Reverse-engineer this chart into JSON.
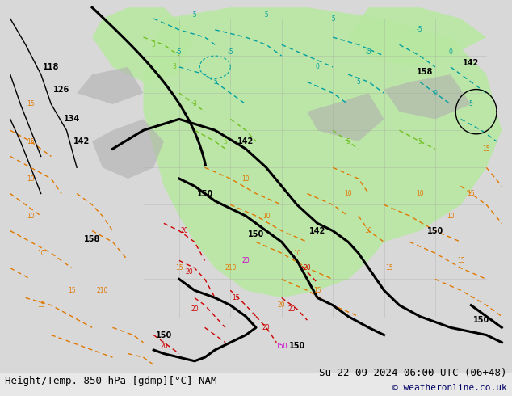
{
  "title_left": "Height/Temp. 850 hPa [gdmp][°C] NAM",
  "title_right": "Su 22-09-2024 06:00 UTC (06+48)",
  "copyright": "© weatheronline.co.uk",
  "bg_color": "#e8e8e8",
  "map_bg_color": "#d8d8d8",
  "green_fill_color": "#b8e8a0",
  "figsize": [
    6.34,
    4.9
  ],
  "dpi": 100,
  "bottom_text_color": "#000000",
  "copyright_color": "#000066",
  "font_size_bottom": 9,
  "font_size_copyright": 8
}
